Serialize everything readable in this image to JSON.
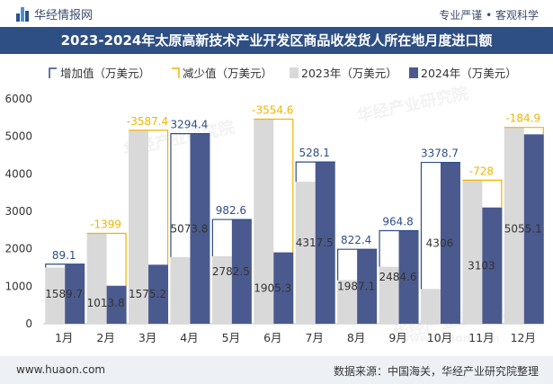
{
  "header": {
    "brand": "华经情报网",
    "tagline": "专业严谨 • 客观科学",
    "title": "2023-2024年太原高新技术产业开发区商品收发货人所在地月度进口额"
  },
  "footer": {
    "site": "www.huaon.com",
    "source": "数据来源：中国海关，华经产业研究院整理"
  },
  "watermarks": [
    "华经产业研究院",
    "www.huaon.com"
  ],
  "colors": {
    "bar2023": "#d9d9d9",
    "bar2024": "#4a5a8e",
    "increase": "#2e4f84",
    "decrease": "#f0b400"
  },
  "chart_data": {
    "type": "bar",
    "categories": [
      "1月",
      "2月",
      "3月",
      "4月",
      "5月",
      "6月",
      "7月",
      "8月",
      "9月",
      "10月",
      "11月",
      "12月"
    ],
    "series": [
      {
        "name": "2023年（万美元）",
        "values": [
          1500.6,
          2412.8,
          5162.6,
          1779.4,
          1799.9,
          5459.9,
          3789.4,
          1164.7,
          1519.8,
          927.3,
          3831,
          5240
        ]
      },
      {
        "name": "2024年（万美元）",
        "values": [
          1589.7,
          1013.8,
          1575.2,
          5073.8,
          2782.5,
          1905.3,
          4317.5,
          1987.1,
          2484.6,
          4306,
          3103,
          5055.1
        ]
      }
    ],
    "change_labels": [
      "89.1",
      "-1399",
      "-3587.4",
      "3294.4",
      "982.6",
      "-3554.6",
      "528.1",
      "822.4",
      "964.8",
      "3378.7",
      "-728",
      "-184.9"
    ],
    "value_labels": [
      "1589.7",
      "1013.8",
      "1575.2",
      "5073.8",
      "2782.5",
      "1905.3",
      "4317.5",
      "1987.1",
      "2484.6",
      "4306",
      "3103",
      "5055.1"
    ],
    "legend": [
      "增加值（万美元）",
      "减少值（万美元）",
      "2023年（万美元）",
      "2024年（万美元）"
    ],
    "legend_position": "top-left",
    "ylim": [
      0,
      6000
    ],
    "yticks": [
      "0",
      "1000",
      "2000",
      "3000",
      "4000",
      "5000",
      "6000"
    ],
    "grid": false
  }
}
